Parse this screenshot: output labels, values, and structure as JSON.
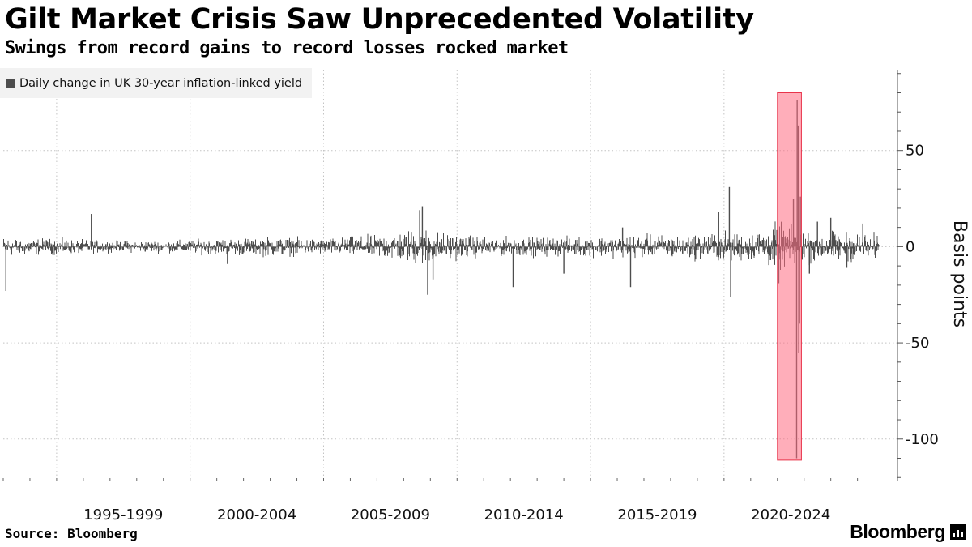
{
  "colors": {
    "bars": "#4d4d4d",
    "highlight_fill": "#ff6b81",
    "highlight_stroke": "#e8334a",
    "grid": "#c4c4c4",
    "legend_bg": "#f2f2f2"
  },
  "header": {
    "title": "Gilt Market Crisis Saw Unprecedented Volatility",
    "subtitle": "Swings from record gains to record losses rocked market"
  },
  "footer": {
    "source": "Source: Bloomberg",
    "brand": "Bloomberg"
  },
  "chart_data": {
    "type": "bar",
    "title": "Gilt Market Crisis Saw Unprecedented Volatility",
    "subtitle": "Swings from record gains to record losses rocked market",
    "legend": [
      "Daily change in UK 30-year inflation-linked yield"
    ],
    "legend_position": "top-left",
    "ylabel": "Basis points",
    "yticks": [
      50,
      0,
      -50,
      -100
    ],
    "ytick_labels": [
      "50",
      "0",
      "-50",
      "-100"
    ],
    "ylim": [
      -122,
      92
    ],
    "xlim": [
      1993.0,
      2025.8
    ],
    "x_period_labels": [
      "1995-1999",
      "2000-2004",
      "2005-2009",
      "2010-2014",
      "2015-2019",
      "2020-2024"
    ],
    "x_period_centers": [
      1997.5,
      2002.5,
      2007.5,
      2012.5,
      2017.5,
      2022.5
    ],
    "x_grid_years": [
      1995,
      2000,
      2005,
      2010,
      2015,
      2020
    ],
    "grid": "dotted",
    "highlight": {
      "label": "",
      "x_range": [
        2022.0,
        2022.9
      ],
      "y_range": [
        -111,
        80
      ]
    },
    "series": [
      {
        "name": "Daily change in UK 30-year inflation-linked yield",
        "daily_swing_envelope": {
          "x": [
            1993.0,
            1995.0,
            1997.0,
            1999.0,
            2001.0,
            2003.0,
            2005.0,
            2007.0,
            2008.0,
            2008.8,
            2009.5,
            2011.0,
            2013.0,
            2015.0,
            2017.0,
            2018.5,
            2020.0,
            2021.0,
            2022.0,
            2023.0,
            2024.0,
            2025.5
          ],
          "typical_abs": [
            5,
            4,
            3,
            3,
            4,
            5,
            4,
            6,
            8,
            10,
            7,
            5,
            5,
            5,
            6,
            6,
            8,
            7,
            12,
            9,
            8,
            7
          ]
        },
        "notable_moves": [
          {
            "x": 1993.1,
            "y": -23
          },
          {
            "x": 1996.3,
            "y": 17
          },
          {
            "x": 2001.4,
            "y": -9
          },
          {
            "x": 2008.7,
            "y": 21
          },
          {
            "x": 2008.6,
            "y": 19
          },
          {
            "x": 2008.9,
            "y": -25
          },
          {
            "x": 2009.1,
            "y": -17
          },
          {
            "x": 2012.1,
            "y": -21
          },
          {
            "x": 2014.0,
            "y": -14
          },
          {
            "x": 2016.5,
            "y": -21
          },
          {
            "x": 2016.2,
            "y": 10
          },
          {
            "x": 2019.8,
            "y": 18
          },
          {
            "x": 2020.2,
            "y": 31
          },
          {
            "x": 2020.25,
            "y": -26
          },
          {
            "x": 2022.05,
            "y": -19
          },
          {
            "x": 2022.6,
            "y": 25
          },
          {
            "x": 2022.72,
            "y": -110
          },
          {
            "x": 2022.74,
            "y": 76
          },
          {
            "x": 2022.78,
            "y": 63
          },
          {
            "x": 2022.8,
            "y": -55
          },
          {
            "x": 2022.83,
            "y": -40
          },
          {
            "x": 2022.86,
            "y": 26
          },
          {
            "x": 2023.2,
            "y": -14
          },
          {
            "x": 2023.5,
            "y": 13
          },
          {
            "x": 2024.0,
            "y": 15
          },
          {
            "x": 2024.6,
            "y": -11
          },
          {
            "x": 2025.2,
            "y": 12
          }
        ]
      }
    ]
  }
}
